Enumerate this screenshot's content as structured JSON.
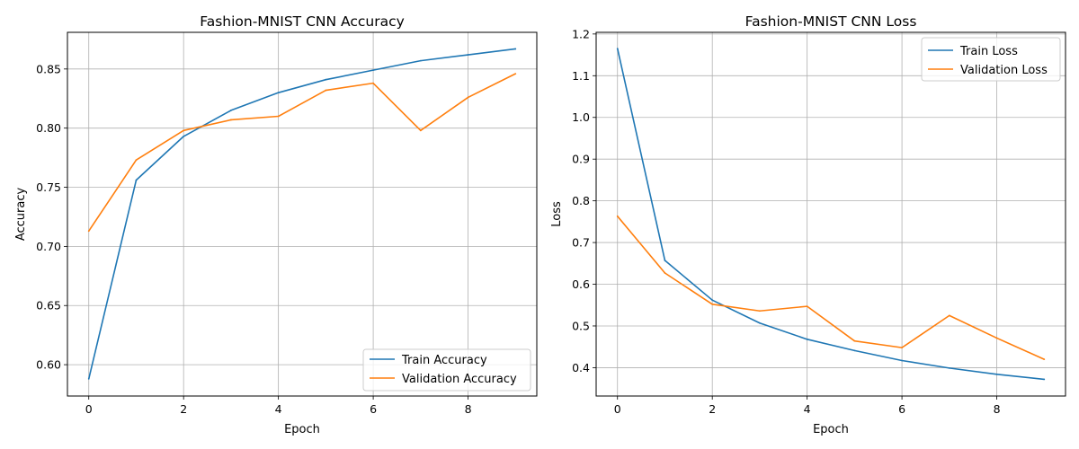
{
  "chart_data": [
    {
      "type": "line",
      "title": "Fashion-MNIST CNN Accuracy",
      "xlabel": "Epoch",
      "ylabel": "Accuracy",
      "x": [
        0,
        1,
        2,
        3,
        4,
        5,
        6,
        7,
        8,
        9
      ],
      "xlim": [
        -0.45,
        9.45
      ],
      "ylim": [
        0.5735,
        0.881
      ],
      "xticks": [
        0,
        2,
        4,
        6,
        8
      ],
      "xtick_labels": [
        "0",
        "2",
        "4",
        "6",
        "8"
      ],
      "yticks": [
        0.6,
        0.65,
        0.7,
        0.75,
        0.8,
        0.85
      ],
      "ytick_labels": [
        "0.60",
        "0.65",
        "0.70",
        "0.75",
        "0.80",
        "0.85"
      ],
      "grid": true,
      "legend_position": "lower-right",
      "series": [
        {
          "name": "Train Accuracy",
          "color": "#1f77b4",
          "values": [
            0.588,
            0.756,
            0.793,
            0.815,
            0.83,
            0.841,
            0.849,
            0.857,
            0.862,
            0.867
          ]
        },
        {
          "name": "Validation Accuracy",
          "color": "#ff7f0e",
          "values": [
            0.713,
            0.773,
            0.798,
            0.807,
            0.81,
            0.832,
            0.838,
            0.798,
            0.826,
            0.846
          ]
        }
      ]
    },
    {
      "type": "line",
      "title": "Fashion-MNIST CNN Loss",
      "xlabel": "Epoch",
      "ylabel": "Loss",
      "x": [
        0,
        1,
        2,
        3,
        4,
        5,
        6,
        7,
        8,
        9
      ],
      "xlim": [
        -0.45,
        9.45
      ],
      "ylim": [
        0.332,
        1.204
      ],
      "xticks": [
        0,
        2,
        4,
        6,
        8
      ],
      "xtick_labels": [
        "0",
        "2",
        "4",
        "6",
        "8"
      ],
      "yticks": [
        0.4,
        0.5,
        0.6,
        0.7,
        0.8,
        0.9,
        1.0,
        1.1,
        1.2
      ],
      "ytick_labels": [
        "0.4",
        "0.5",
        "0.6",
        "0.7",
        "0.8",
        "0.9",
        "1.0",
        "1.1",
        "1.2"
      ],
      "grid": true,
      "legend_position": "upper-right",
      "series": [
        {
          "name": "Train Loss",
          "color": "#1f77b4",
          "values": [
            1.165,
            0.657,
            0.562,
            0.507,
            0.468,
            0.441,
            0.417,
            0.399,
            0.384,
            0.372
          ]
        },
        {
          "name": "Validation Loss",
          "color": "#ff7f0e",
          "values": [
            0.763,
            0.627,
            0.552,
            0.536,
            0.547,
            0.464,
            0.448,
            0.525,
            0.471,
            0.42
          ]
        }
      ]
    }
  ]
}
